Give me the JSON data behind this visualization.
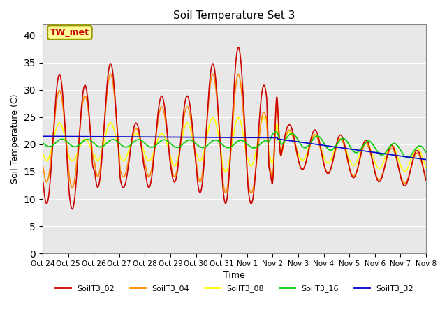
{
  "title": "Soil Temperature Set 3",
  "xlabel": "Time",
  "ylabel": "Soil Temperature (C)",
  "ylim": [
    0,
    42
  ],
  "yticks": [
    0,
    5,
    10,
    15,
    20,
    25,
    30,
    35,
    40
  ],
  "bg_color": "#e8e8e8",
  "fig_color": "#ffffff",
  "annotation_text": "TW_met",
  "annotation_color": "#cc0000",
  "annotation_bg": "#ffff99",
  "annotation_border": "#999900",
  "series_colors": {
    "SoilT3_02": "#cc0000",
    "SoilT3_04": "#ff8800",
    "SoilT3_08": "#ffff00",
    "SoilT3_16": "#00cc00",
    "SoilT3_32": "#0000cc"
  },
  "x_labels": [
    "Oct 24",
    "Oct 25",
    "Oct 26",
    "Oct 27",
    "Oct 28",
    "Oct 29",
    "Oct 30",
    "Oct 31",
    "Nov 1",
    "Nov 2",
    "Nov 3",
    "Nov 4",
    "Nov 5",
    "Nov 6",
    "Nov 7",
    "Nov 8"
  ],
  "grid_color": "#ffffff",
  "spine_color": "#888888"
}
